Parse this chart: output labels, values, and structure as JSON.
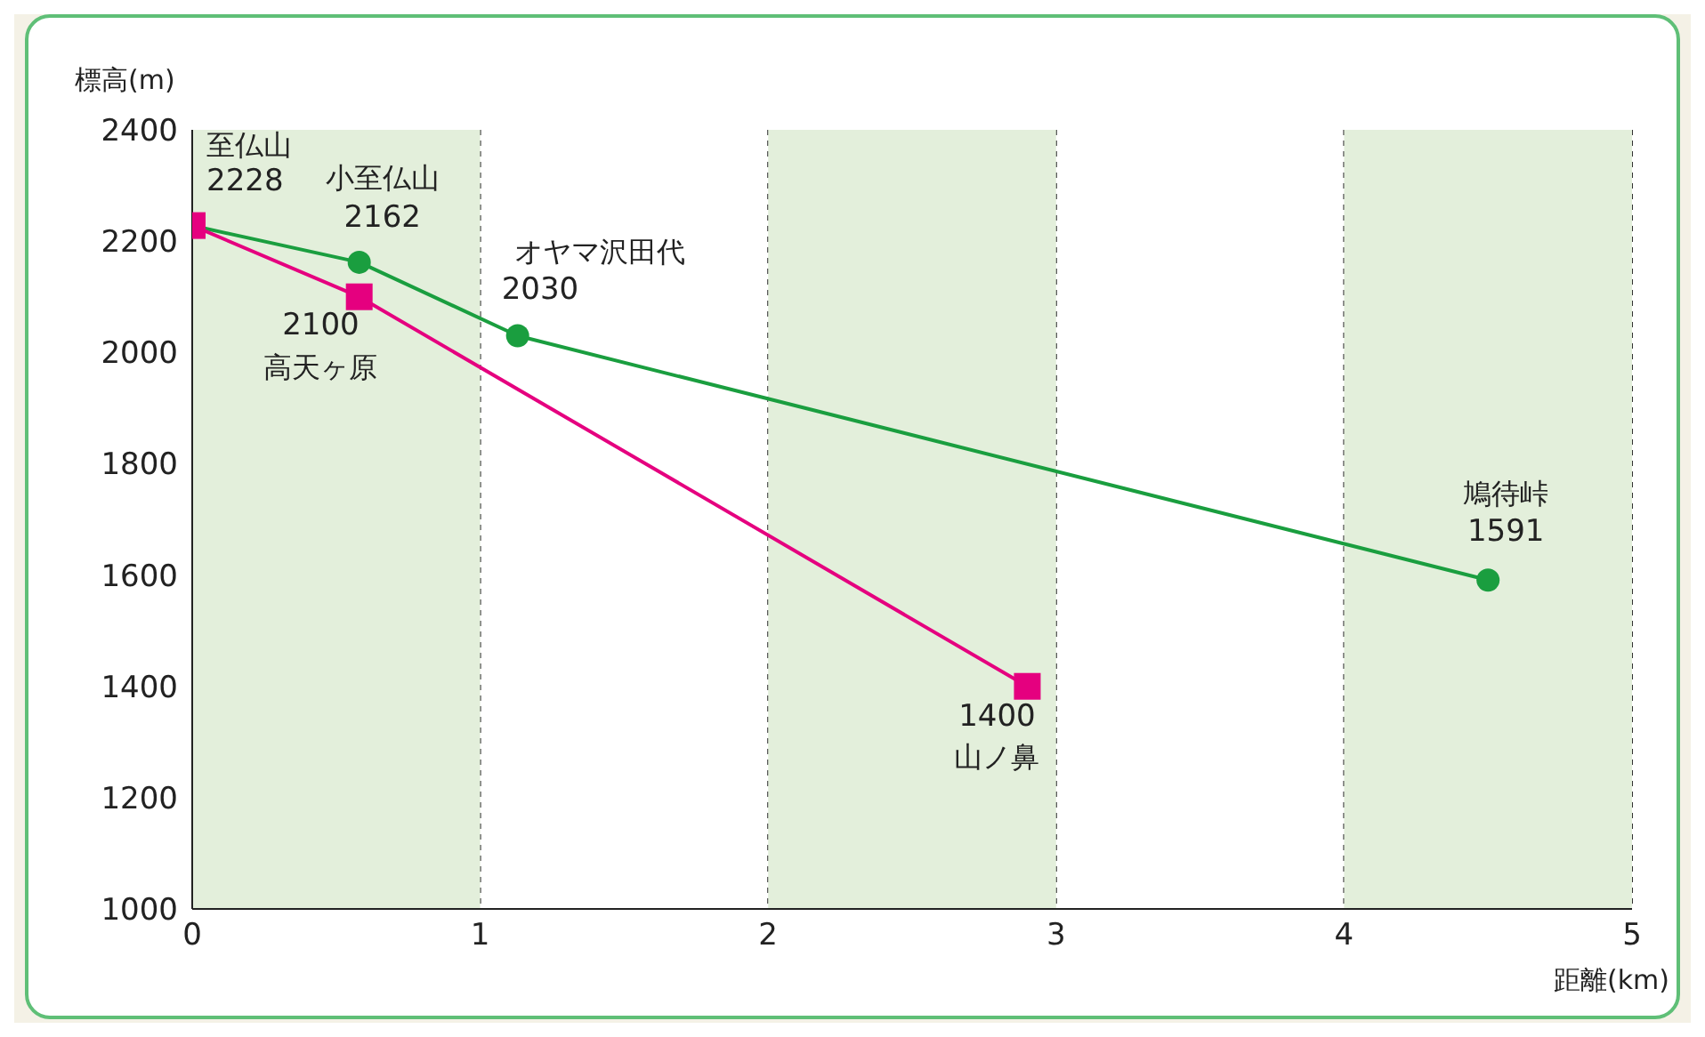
{
  "chart_data": {
    "type": "line",
    "xlabel": "距離(km)",
    "ylabel": "標高(m)",
    "xlim": [
      0,
      5
    ],
    "xticks": [
      0,
      1,
      2,
      3,
      4,
      5
    ],
    "ylim": [
      1000,
      2400
    ],
    "yticks": [
      1000,
      1200,
      1400,
      1600,
      1800,
      2000,
      2200,
      2400
    ],
    "grid": "x",
    "line_style": "solid",
    "bands": [
      {
        "axis": "x",
        "from": 0,
        "to": 1,
        "color": "#e3efdb"
      },
      {
        "axis": "x",
        "from": 2,
        "to": 3,
        "color": "#e3efdb"
      },
      {
        "axis": "x",
        "from": 4,
        "to": 5,
        "color": "#e3efdb"
      }
    ],
    "series": [
      {
        "color": "#1a9e3f",
        "marker": "circle",
        "x": [
          0,
          0.58,
          1.13,
          4.5
        ],
        "values": [
          2228,
          2162,
          2030,
          1591
        ],
        "value_labels": [
          "2228",
          "2162",
          "2030",
          "1591"
        ]
      },
      {
        "color": "#e5007f",
        "marker": "square",
        "x": [
          0,
          0.58,
          2.9
        ],
        "values": [
          2228,
          2100,
          1400
        ],
        "value_labels": [
          null,
          "2100",
          "1400"
        ]
      }
    ],
    "annotations": [
      {
        "text": "至仏山",
        "x": 0,
        "y": 2228
      },
      {
        "text": "小至仏山",
        "x": 0.58,
        "y": 2162
      },
      {
        "text": "オヤマ沢田代",
        "x": 1.13,
        "y": 2030
      },
      {
        "text": "鳩待峠",
        "x": 4.5,
        "y": 1591
      },
      {
        "text": "高天ヶ原",
        "x": 0.58,
        "y": 2100
      },
      {
        "text": "山ノ鼻",
        "x": 2.9,
        "y": 1400
      }
    ]
  }
}
